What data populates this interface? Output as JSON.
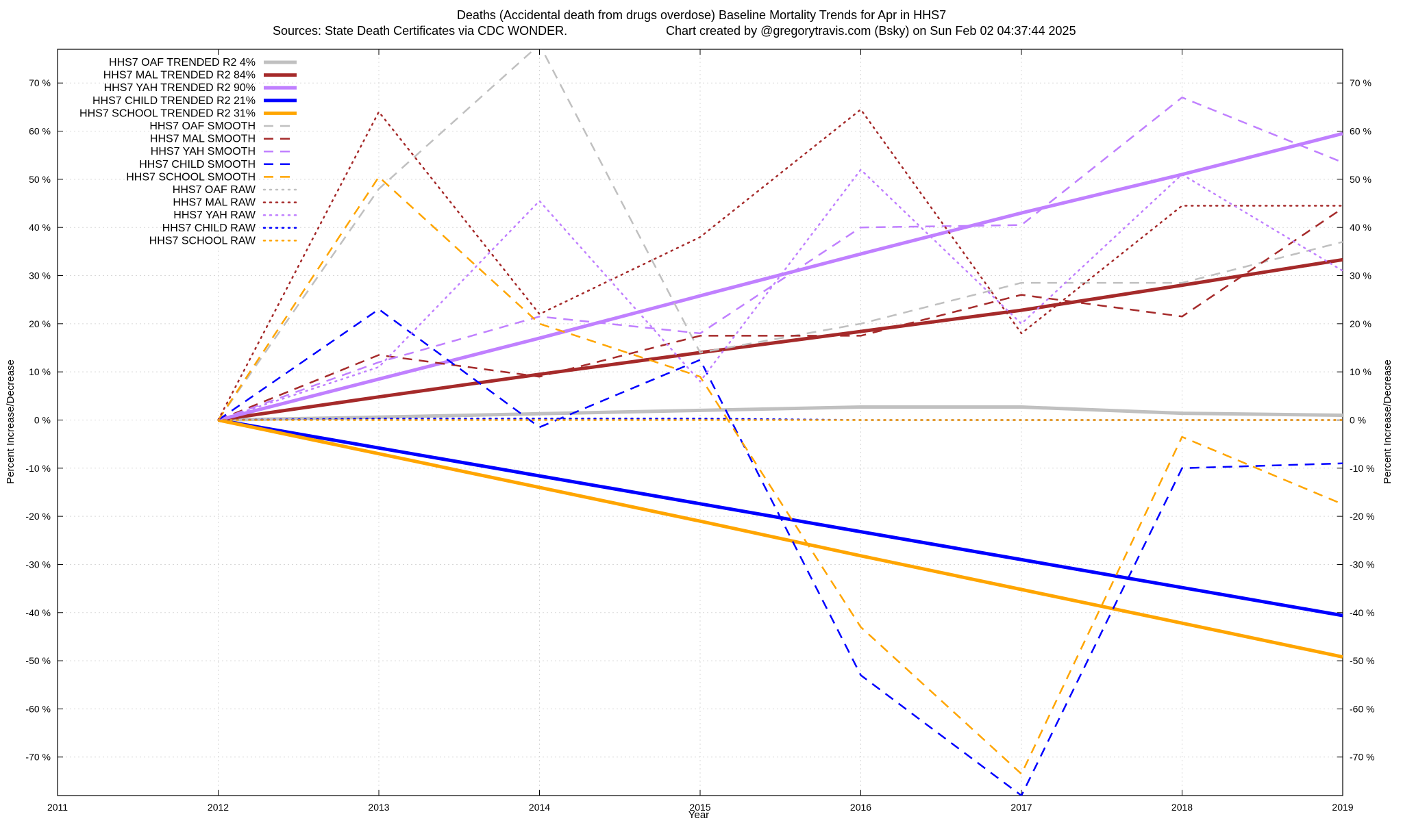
{
  "chart_data": {
    "type": "line",
    "title_line1": "Deaths (Accidental death from drugs overdose)  Baseline Mortality Trends for Apr in HHS7",
    "title_line2_left": "Sources: State Death Certificates via CDC WONDER.",
    "title_line2_right": "Chart created by @gregorytravis.com (Bsky) on Sun Feb 02 04:37:44 2025",
    "xlabel": "Year",
    "ylabel": "Percent Increase/Decrease",
    "y2label": "Percent Increase/Decrease",
    "xlim": [
      2011,
      2019
    ],
    "ylim": [
      -78,
      77
    ],
    "x_ticks": [
      2011,
      2012,
      2013,
      2014,
      2015,
      2016,
      2017,
      2018,
      2019
    ],
    "y_ticks": [
      -70,
      -60,
      -50,
      -40,
      -30,
      -20,
      -10,
      0,
      10,
      20,
      30,
      40,
      50,
      60,
      70
    ],
    "y_tick_labels": [
      "-70 %",
      "-60 %",
      "-50 %",
      "-40 %",
      "-30 %",
      "-20 %",
      "-10 %",
      "0 %",
      "10 %",
      "20 %",
      "30 %",
      "40 %",
      "50 %",
      "60 %",
      "70 %"
    ],
    "grid": true,
    "legend_position": "top-left",
    "x": [
      2012,
      2013,
      2014,
      2015,
      2016,
      2017,
      2018,
      2019
    ],
    "series": [
      {
        "name": "HHS7 OAF TRENDED R2  4%",
        "style": "solid",
        "color": "#c0c0c0",
        "width": 5,
        "values": [
          0,
          0.6,
          1.3,
          2.0,
          2.7,
          2.7,
          1.4,
          1.0
        ]
      },
      {
        "name": "HHS7 MAL TRENDED R2  84%",
        "style": "solid",
        "color": "#a52a2a",
        "width": 5,
        "values": [
          0,
          4.8,
          9.5,
          14.0,
          18.4,
          22.8,
          28.0,
          33.3
        ]
      },
      {
        "name": "HHS7 YAH TRENDED R2  90%",
        "style": "solid",
        "color": "#c080ff",
        "width": 5,
        "values": [
          0,
          8.5,
          17.0,
          25.8,
          34.5,
          43.0,
          51.0,
          59.5
        ]
      },
      {
        "name": "HHS7 CHILD TRENDED R2  21%",
        "style": "solid",
        "color": "#0000ff",
        "width": 5,
        "values": [
          0,
          -5.8,
          -11.6,
          -17.4,
          -23.2,
          -29.0,
          -34.8,
          -40.6
        ]
      },
      {
        "name": "HHS7 SCHOOL TRENDED R2  31%",
        "style": "solid",
        "color": "#ffa500",
        "width": 5,
        "values": [
          0,
          -7.0,
          -14.0,
          -21.0,
          -28.2,
          -35.2,
          -42.2,
          -49.2
        ]
      },
      {
        "name": "HHS7 OAF SMOOTH",
        "style": "dash",
        "color": "#c0c0c0",
        "width": 2.5,
        "values": [
          0,
          48.0,
          78.0,
          14.0,
          20.0,
          28.5,
          28.5,
          37.0
        ]
      },
      {
        "name": "HHS7 MAL SMOOTH",
        "style": "dash",
        "color": "#a52a2a",
        "width": 2.5,
        "values": [
          0,
          13.5,
          9.0,
          17.5,
          17.5,
          26.0,
          21.5,
          44.0
        ]
      },
      {
        "name": "HHS7 YAH SMOOTH",
        "style": "dash",
        "color": "#c080ff",
        "width": 2.5,
        "values": [
          0,
          12.0,
          21.5,
          18.0,
          40.0,
          40.5,
          67.0,
          53.5
        ]
      },
      {
        "name": "HHS7 CHILD SMOOTH",
        "style": "dash",
        "color": "#0000ff",
        "width": 2.5,
        "values": [
          0,
          23.0,
          -1.5,
          12.5,
          -53.0,
          -78.0,
          -10.0,
          -9.0
        ]
      },
      {
        "name": "HHS7 SCHOOL SMOOTH",
        "style": "dash",
        "color": "#ffa500",
        "width": 2.5,
        "values": [
          0,
          50.5,
          20.0,
          9.0,
          -43.0,
          -73.5,
          -3.5,
          -17.5
        ]
      },
      {
        "name": "HHS7 OAF RAW",
        "style": "dot",
        "color": "#c0c0c0",
        "width": 2.5,
        "values": [
          0,
          0,
          0,
          0,
          0,
          0,
          0,
          0
        ]
      },
      {
        "name": "HHS7 MAL RAW",
        "style": "dot",
        "color": "#a52a2a",
        "width": 2.5,
        "values": [
          0,
          64.0,
          22.0,
          38.0,
          64.5,
          18.0,
          44.5,
          44.5
        ]
      },
      {
        "name": "HHS7 YAH RAW",
        "style": "dot",
        "color": "#c080ff",
        "width": 2.5,
        "values": [
          0,
          11.0,
          45.5,
          8.0,
          52.0,
          20.0,
          51.0,
          31.0
        ]
      },
      {
        "name": "HHS7 CHILD RAW",
        "style": "dot",
        "color": "#0000ff",
        "width": 2.5,
        "values": [
          0,
          0.3,
          0.3,
          0.3,
          0,
          0,
          0,
          0
        ]
      },
      {
        "name": "HHS7 SCHOOL RAW",
        "style": "dot",
        "color": "#ffa500",
        "width": 2.5,
        "values": [
          0,
          0,
          0,
          0,
          0,
          0,
          0,
          0
        ]
      }
    ]
  }
}
